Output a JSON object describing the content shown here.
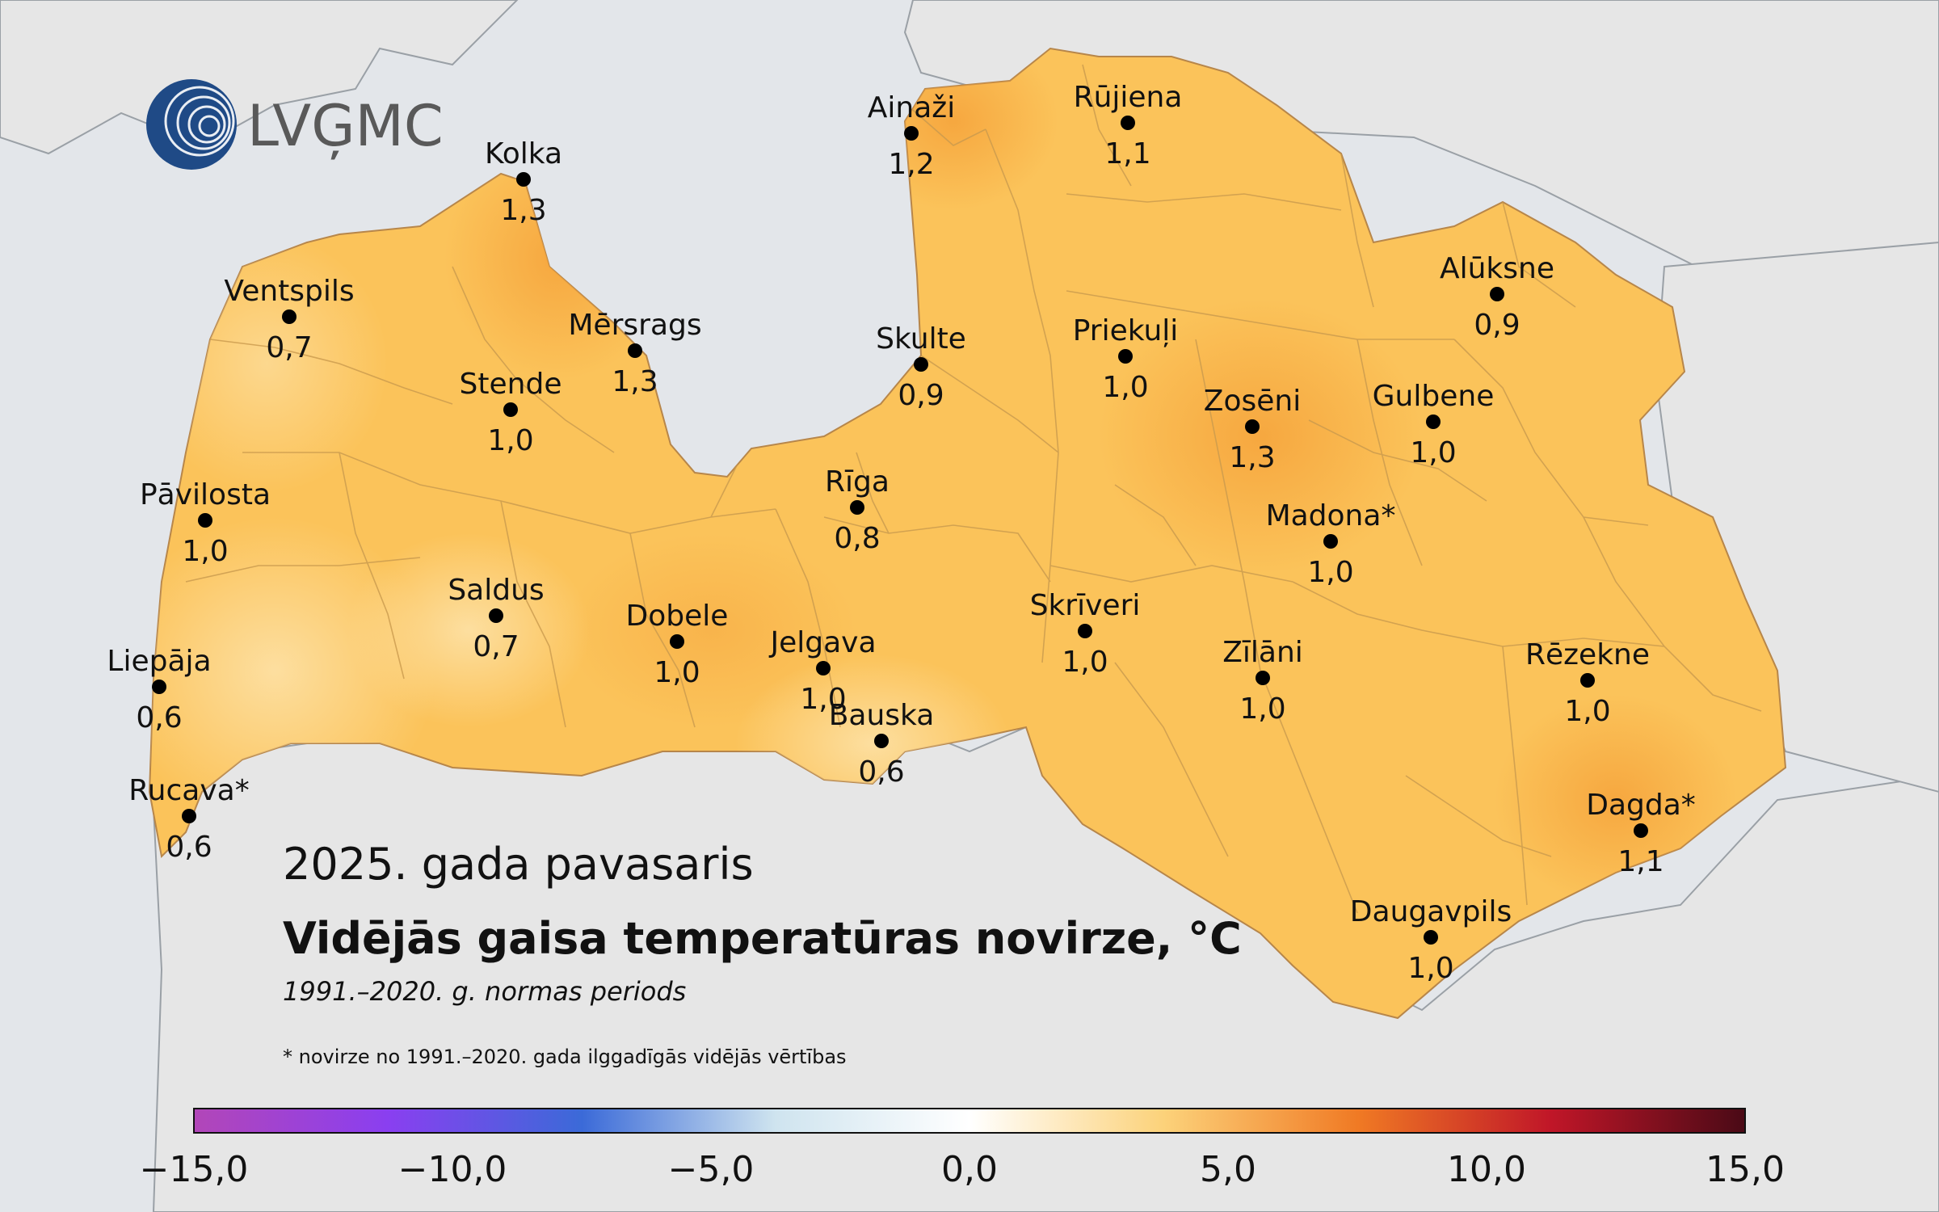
{
  "logo": {
    "text": "LVĢMC"
  },
  "title": {
    "period": "2025. gada pavasaris",
    "main": "Vidējās gaisa temperatūras novirze, °C",
    "norm": "1991.–2020. g. normas periods",
    "footnote": "* novirze no 1991.–2020. gada ilggadīgās vidējās vērtības"
  },
  "colors": {
    "sea": "#e3e6ea",
    "land_outside": "#e6e6e6",
    "latvia_base": "#fbc35a",
    "warm_patch": "#f7ad46",
    "cool_patch": "#fdd690",
    "boundary": "#c99a4e"
  },
  "stations": [
    {
      "name": "Ainaži",
      "value": "1,2"
    },
    {
      "name": "Rūjiena",
      "value": "1,1"
    },
    {
      "name": "Kolka",
      "value": "1,3"
    },
    {
      "name": "Ventspils",
      "value": "0,7"
    },
    {
      "name": "Mērsrags",
      "value": "1,3"
    },
    {
      "name": "Skulte",
      "value": "0,9"
    },
    {
      "name": "Alūksne",
      "value": "0,9"
    },
    {
      "name": "Priekuļi",
      "value": "1,0"
    },
    {
      "name": "Stende",
      "value": "1,0"
    },
    {
      "name": "Zosēni",
      "value": "1,3"
    },
    {
      "name": "Gulbene",
      "value": "1,0"
    },
    {
      "name": "Pāvilosta",
      "value": "1,0"
    },
    {
      "name": "Rīga",
      "value": "0,8"
    },
    {
      "name": "Madona*",
      "value": "1,0"
    },
    {
      "name": "Saldus",
      "value": "0,7"
    },
    {
      "name": "Dobele",
      "value": "1,0"
    },
    {
      "name": "Skrīveri",
      "value": "1,0"
    },
    {
      "name": "Jelgava",
      "value": "1,0"
    },
    {
      "name": "Zīlāni",
      "value": "1,0"
    },
    {
      "name": "Rēzekne",
      "value": "1,0"
    },
    {
      "name": "Liepāja",
      "value": "0,6"
    },
    {
      "name": "Bauska",
      "value": "0,6"
    },
    {
      "name": "Rucava*",
      "value": "0,6"
    },
    {
      "name": "Dagda*",
      "value": "1,1"
    },
    {
      "name": "Daugavpils",
      "value": "1,0"
    }
  ],
  "colorbar": {
    "min": -15,
    "max": 15,
    "ticks": [
      "−15,0",
      "−10,0",
      "−5,0",
      "0,0",
      "5,0",
      "10,0",
      "15,0"
    ],
    "stops": [
      "#b246b8",
      "#8a3ff0",
      "#3b6ad8",
      "#cfe4ef",
      "#ffffff",
      "#fcd27a",
      "#f07a24",
      "#c01628",
      "#4a0a16"
    ]
  }
}
